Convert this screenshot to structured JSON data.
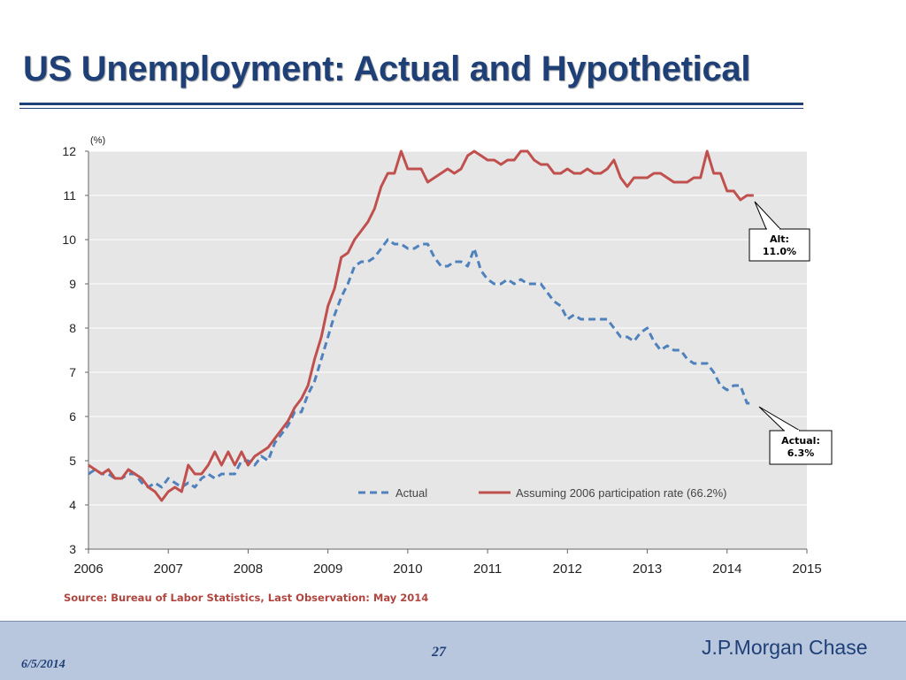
{
  "slide": {
    "title": "US Unemployment: Actual and Hypothetical",
    "source": "Source: Bureau of Labor Statistics, Last Observation: May 2014",
    "footer": {
      "date": "6/5/2014",
      "page": "27",
      "brand": "J.P.Morgan Chase"
    },
    "colors": {
      "title": "#1f3f77",
      "actual": "#4f81bd",
      "alt": "#c0504d",
      "plot_bg": "#e6e6e6",
      "source_text": "#b0463f",
      "footer_bg": "#b8c7de"
    }
  },
  "chart_data": {
    "type": "line",
    "ylabel": "(%)",
    "xlim": [
      2006,
      2015
    ],
    "ylim": [
      3,
      12
    ],
    "x_ticks": [
      2006,
      2007,
      2008,
      2009,
      2010,
      2011,
      2012,
      2013,
      2014,
      2015
    ],
    "y_ticks": [
      3,
      4,
      5,
      6,
      7,
      8,
      9,
      10,
      11,
      12
    ],
    "grid": true,
    "legend_position": "bottom-right",
    "series": [
      {
        "name": "Actual",
        "style": "dashed",
        "color": "#4f81bd",
        "x": [
          2006.0,
          2006.083,
          2006.167,
          2006.25,
          2006.333,
          2006.417,
          2006.5,
          2006.583,
          2006.667,
          2006.75,
          2006.833,
          2006.917,
          2007.0,
          2007.083,
          2007.167,
          2007.25,
          2007.333,
          2007.417,
          2007.5,
          2007.583,
          2007.667,
          2007.75,
          2007.833,
          2007.917,
          2008.0,
          2008.083,
          2008.167,
          2008.25,
          2008.333,
          2008.417,
          2008.5,
          2008.583,
          2008.667,
          2008.75,
          2008.833,
          2008.917,
          2009.0,
          2009.083,
          2009.167,
          2009.25,
          2009.333,
          2009.417,
          2009.5,
          2009.583,
          2009.667,
          2009.75,
          2009.833,
          2009.917,
          2010.0,
          2010.083,
          2010.167,
          2010.25,
          2010.333,
          2010.417,
          2010.5,
          2010.583,
          2010.667,
          2010.75,
          2010.833,
          2010.917,
          2011.0,
          2011.083,
          2011.167,
          2011.25,
          2011.333,
          2011.417,
          2011.5,
          2011.583,
          2011.667,
          2011.75,
          2011.833,
          2011.917,
          2012.0,
          2012.083,
          2012.167,
          2012.25,
          2012.333,
          2012.417,
          2012.5,
          2012.583,
          2012.667,
          2012.75,
          2012.833,
          2012.917,
          2013.0,
          2013.083,
          2013.167,
          2013.25,
          2013.333,
          2013.417,
          2013.5,
          2013.583,
          2013.667,
          2013.75,
          2013.833,
          2013.917,
          2014.0,
          2014.083,
          2014.167,
          2014.25,
          2014.333
        ],
        "values": [
          4.7,
          4.8,
          4.7,
          4.7,
          4.6,
          4.6,
          4.7,
          4.7,
          4.5,
          4.4,
          4.5,
          4.4,
          4.6,
          4.5,
          4.4,
          4.5,
          4.4,
          4.6,
          4.7,
          4.6,
          4.7,
          4.7,
          4.7,
          5.0,
          5.0,
          4.9,
          5.1,
          5.0,
          5.4,
          5.6,
          5.8,
          6.1,
          6.1,
          6.5,
          6.8,
          7.3,
          7.8,
          8.3,
          8.7,
          9.0,
          9.4,
          9.5,
          9.5,
          9.6,
          9.8,
          10.0,
          9.9,
          9.9,
          9.8,
          9.8,
          9.9,
          9.9,
          9.6,
          9.4,
          9.4,
          9.5,
          9.5,
          9.4,
          9.8,
          9.3,
          9.1,
          9.0,
          9.0,
          9.1,
          9.0,
          9.1,
          9.0,
          9.0,
          9.0,
          8.8,
          8.6,
          8.5,
          8.2,
          8.3,
          8.2,
          8.2,
          8.2,
          8.2,
          8.2,
          8.0,
          7.8,
          7.8,
          7.7,
          7.9,
          8.0,
          7.7,
          7.5,
          7.6,
          7.5,
          7.5,
          7.3,
          7.2,
          7.2,
          7.2,
          7.0,
          6.7,
          6.6,
          6.7,
          6.7,
          6.3,
          6.3
        ]
      },
      {
        "name": "Assuming 2006 participation rate (66.2%)",
        "style": "solid",
        "color": "#c0504d",
        "x": [
          2006.0,
          2006.083,
          2006.167,
          2006.25,
          2006.333,
          2006.417,
          2006.5,
          2006.583,
          2006.667,
          2006.75,
          2006.833,
          2006.917,
          2007.0,
          2007.083,
          2007.167,
          2007.25,
          2007.333,
          2007.417,
          2007.5,
          2007.583,
          2007.667,
          2007.75,
          2007.833,
          2007.917,
          2008.0,
          2008.083,
          2008.167,
          2008.25,
          2008.333,
          2008.417,
          2008.5,
          2008.583,
          2008.667,
          2008.75,
          2008.833,
          2008.917,
          2009.0,
          2009.083,
          2009.167,
          2009.25,
          2009.333,
          2009.417,
          2009.5,
          2009.583,
          2009.667,
          2009.75,
          2009.833,
          2009.917,
          2010.0,
          2010.083,
          2010.167,
          2010.25,
          2010.333,
          2010.417,
          2010.5,
          2010.583,
          2010.667,
          2010.75,
          2010.833,
          2010.917,
          2011.0,
          2011.083,
          2011.167,
          2011.25,
          2011.333,
          2011.417,
          2011.5,
          2011.583,
          2011.667,
          2011.75,
          2011.833,
          2011.917,
          2012.0,
          2012.083,
          2012.167,
          2012.25,
          2012.333,
          2012.417,
          2012.5,
          2012.583,
          2012.667,
          2012.75,
          2012.833,
          2012.917,
          2013.0,
          2013.083,
          2013.167,
          2013.25,
          2013.333,
          2013.417,
          2013.5,
          2013.583,
          2013.667,
          2013.75,
          2013.833,
          2013.917,
          2014.0,
          2014.083,
          2014.167,
          2014.25,
          2014.333
        ],
        "values": [
          4.9,
          4.8,
          4.7,
          4.8,
          4.6,
          4.6,
          4.8,
          4.7,
          4.6,
          4.4,
          4.3,
          4.1,
          4.3,
          4.4,
          4.3,
          4.9,
          4.7,
          4.7,
          4.9,
          5.2,
          4.9,
          5.2,
          4.9,
          5.2,
          4.9,
          5.1,
          5.2,
          5.3,
          5.5,
          5.7,
          5.9,
          6.2,
          6.4,
          6.7,
          7.3,
          7.8,
          8.5,
          8.9,
          9.6,
          9.7,
          10.0,
          10.2,
          10.4,
          10.7,
          11.2,
          11.5,
          11.5,
          12.0,
          11.6,
          11.6,
          11.6,
          11.3,
          11.4,
          11.5,
          11.6,
          11.5,
          11.6,
          11.9,
          12.0,
          11.9,
          11.8,
          11.8,
          11.7,
          11.8,
          11.8,
          12.0,
          12.0,
          11.8,
          11.7,
          11.7,
          11.5,
          11.5,
          11.6,
          11.5,
          11.5,
          11.6,
          11.5,
          11.5,
          11.6,
          11.8,
          11.4,
          11.2,
          11.4,
          11.4,
          11.4,
          11.5,
          11.5,
          11.4,
          11.3,
          11.3,
          11.3,
          11.4,
          11.4,
          12.0,
          11.5,
          11.5,
          11.1,
          11.1,
          10.9,
          11.0,
          11.0
        ]
      }
    ],
    "annotations": [
      {
        "line1": "Alt:",
        "line2": "11.0%",
        "series": 1
      },
      {
        "line1": "Actual:",
        "line2": "6.3%",
        "series": 0
      }
    ]
  }
}
